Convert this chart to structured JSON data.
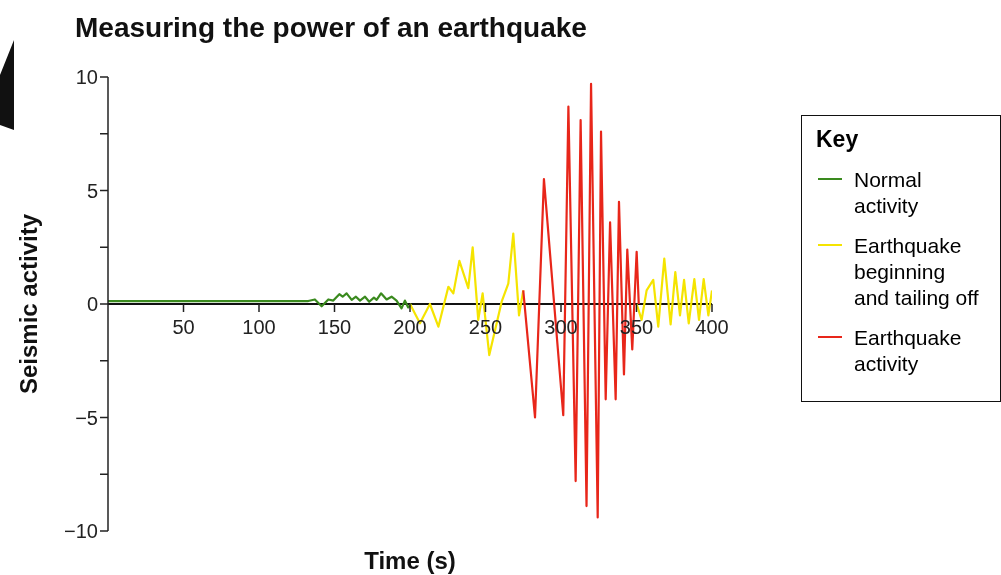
{
  "chart_data": {
    "type": "line",
    "title": "Measuring the power of an earthquake",
    "xlabel": "Time (s)",
    "ylabel": "Seismic activity",
    "legend_title": "Key",
    "legend": "right",
    "grid": false,
    "marker": "none",
    "line_style": "solid",
    "xlim": [
      0,
      400
    ],
    "xticks": [
      50,
      100,
      150,
      200,
      250,
      300,
      350,
      400
    ],
    "ylim": [
      -10,
      10
    ],
    "yticks": [
      -10,
      {
        "value": -7.5,
        "label": null
      },
      -5,
      {
        "value": -2.5,
        "label": null
      },
      0,
      {
        "value": 2.5,
        "label": null
      },
      5,
      {
        "value": 7.5,
        "label": null
      },
      10
    ],
    "series": [
      {
        "name": "Normal activity",
        "color": "#3a8a1e",
        "x": [
          0,
          132.6,
          137,
          141.5,
          145.9,
          149.2,
          153.2,
          155.4,
          158,
          161.4,
          164.2,
          166.9,
          170.2,
          173,
          176.1,
          177.9,
          180.8,
          184.5,
          187.8,
          191.1,
          194.4,
          196.6,
          198.8,
          201
        ],
        "values": [
          0.13,
          0.13,
          0.2,
          -0.1,
          0.2,
          0.15,
          0.43,
          0.32,
          0.47,
          0.18,
          0.32,
          0.15,
          0.32,
          0.1,
          0.28,
          0.18,
          0.47,
          0.2,
          0.32,
          0.15,
          -0.19,
          0.15,
          -0.15,
          0
        ]
      },
      {
        "name": "Earthquake beginning and tailing off",
        "color": "#f5e400",
        "x": [
          200,
          206.6,
          213.2,
          218.8,
          225.4,
          228.7,
          232.7,
          238.6,
          241.5,
          245.2,
          248.1,
          252.5,
          260.7,
          265.1,
          268.4,
          272.2,
          275,
          312,
          350.1,
          353.4,
          356.7,
          361.1,
          364.4,
          368.4,
          372.6,
          375.7,
          378.8,
          381.5,
          384.6,
          388.3,
          391.4,
          394.5,
          397.6,
          400
        ],
        "values": [
          0,
          -0.85,
          0,
          -1,
          0.76,
          0.47,
          1.9,
          0.7,
          2.5,
          -0.7,
          0.47,
          -2.25,
          0.1,
          0.9,
          3.1,
          -0.5,
          0.6,
          null,
          0,
          -0.7,
          0.6,
          1.06,
          -1,
          2,
          -0.9,
          1.4,
          -0.5,
          1.06,
          -0.85,
          1.1,
          -0.7,
          1.1,
          -0.5,
          0.6
        ]
      },
      {
        "name": "Earthquake activity",
        "color": "#e8261a",
        "x": [
          275,
          282.8,
          288.7,
          301.5,
          304.9,
          309.7,
          313,
          316.9,
          319.9,
          324.3,
          326.5,
          329.6,
          332.5,
          336.2,
          338.4,
          341.7,
          343.9,
          347.2,
          350.1,
          351.5
        ],
        "values": [
          0.6,
          -5,
          5.5,
          -4.9,
          8.7,
          -7.8,
          8.1,
          -8.9,
          9.7,
          -9.4,
          7.6,
          -4.2,
          3.6,
          -4.2,
          4.5,
          -3.1,
          2.4,
          -2,
          2.3,
          0
        ]
      }
    ]
  }
}
